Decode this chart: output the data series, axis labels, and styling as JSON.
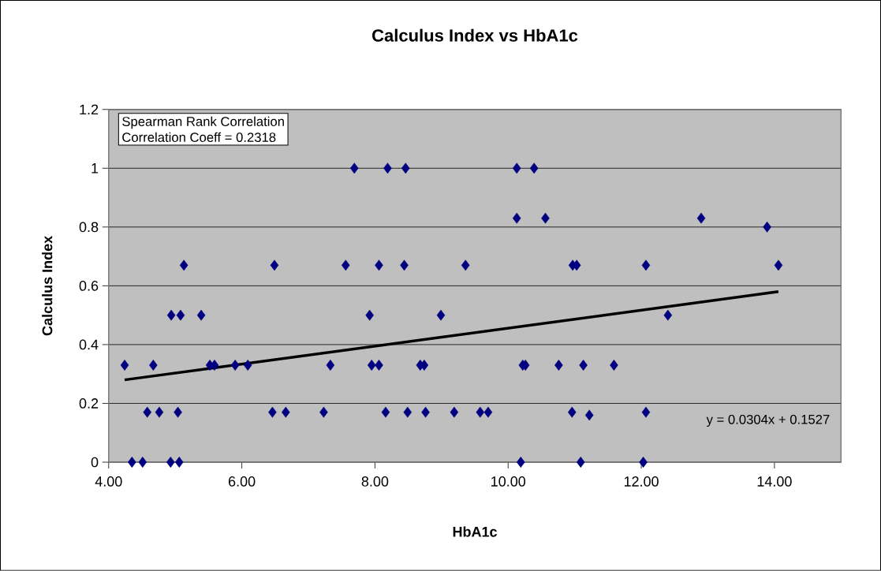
{
  "chart_data": {
    "type": "scatter",
    "title": "Calculus Index  vs  HbA1c",
    "xlabel": "HbA1c",
    "ylabel": "Calculus Index",
    "annotations": [
      "Spearman Rank Correlation",
      "Correlation Coeff = 0.2318",
      "y = 0.0304x + 0.1527"
    ],
    "xlim": [
      4,
      15
    ],
    "ylim": [
      0,
      1.2
    ],
    "xticks": [
      {
        "value": 4,
        "label": "4.00"
      },
      {
        "value": 6,
        "label": "6.00"
      },
      {
        "value": 8,
        "label": "8.00"
      },
      {
        "value": 10,
        "label": "10.00"
      },
      {
        "value": 12,
        "label": "12.00"
      },
      {
        "value": 14,
        "label": "14.00"
      }
    ],
    "yticks": [
      0,
      0.2,
      0.4,
      0.6,
      0.8,
      1,
      1.2
    ],
    "grid": "y",
    "marker": "diamond",
    "series": [
      {
        "color": "#000080",
        "x": [
          4.24,
          4.35,
          4.51,
          4.67,
          4.58,
          4.76,
          4.94,
          5.08,
          5.13,
          5.04,
          4.93,
          5.06,
          5.39,
          5.52,
          5.59,
          5.9,
          6.09,
          6.49,
          6.46,
          6.66,
          7.23,
          7.33,
          7.56,
          7.69,
          7.92,
          7.95,
          8.06,
          8.06,
          8.19,
          8.46,
          10.13,
          10.39,
          10.13,
          10.56,
          8.44,
          9.36,
          10.97,
          11.03,
          8.99,
          8.68,
          8.74,
          10.22,
          10.26,
          10.76,
          11.13,
          11.59,
          8.16,
          8.49,
          8.76,
          9.19,
          9.58,
          9.7,
          10.96,
          11.22,
          10.19,
          11.09,
          12.9,
          13.89,
          12.07,
          14.06,
          12.4,
          12.07,
          12.03
        ],
        "values": [
          0.33,
          0,
          0,
          0.33,
          0.17,
          0.17,
          0.5,
          0.5,
          0.67,
          0.17,
          0,
          0,
          0.5,
          0.33,
          0.33,
          0.33,
          0.33,
          0.67,
          0.17,
          0.17,
          0.17,
          0.33,
          0.67,
          1,
          0.5,
          0.33,
          0.33,
          0.67,
          1,
          1,
          1,
          1,
          0.83,
          0.83,
          0.67,
          0.67,
          0.67,
          0.67,
          0.5,
          0.33,
          0.33,
          0.33,
          0.33,
          0.33,
          0.33,
          0.33,
          0.17,
          0.17,
          0.17,
          0.17,
          0.17,
          0.17,
          0.17,
          0.16,
          0,
          0,
          0.83,
          0.8,
          0.67,
          0.67,
          0.5,
          0.17,
          0
        ]
      },
      {
        "type": "line",
        "color": "#000000",
        "marker": "none",
        "x": [
          4.24,
          14.06
        ],
        "values": [
          0.28,
          0.58
        ]
      }
    ]
  }
}
